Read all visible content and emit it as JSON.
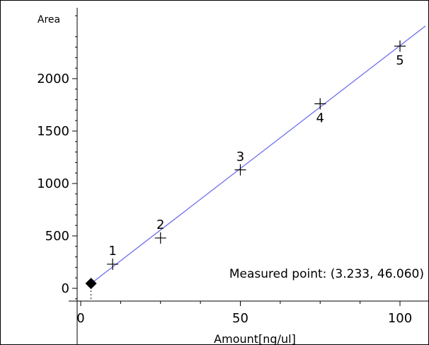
{
  "chart_data": {
    "type": "scatter",
    "ylabel": "Area",
    "xlabel": "Amount[ng/ul]",
    "xlim": [
      -3.5,
      109
    ],
    "ylim": [
      -130,
      2650
    ],
    "xticks": [
      0,
      50,
      100
    ],
    "yticks": [
      0,
      500,
      1000,
      1500,
      2000
    ],
    "x_minor_step": 12.5,
    "y_minor_step": 100,
    "grid": false,
    "series": [
      {
        "points": [
          {
            "label": "1",
            "x": 10,
            "y": 230
          },
          {
            "label": "2",
            "x": 25,
            "y": 480
          },
          {
            "label": "3",
            "x": 50,
            "y": 1130
          },
          {
            "label": "4",
            "x": 75,
            "y": 1760
          },
          {
            "label": "5",
            "x": 100,
            "y": 2310
          }
        ],
        "color": "#000000",
        "marker": "cross"
      }
    ],
    "fit_line": {
      "slope": 23.45,
      "intercept": -30,
      "x_range": [
        3.233,
        108
      ],
      "color": "#6666ee"
    },
    "measured_point": {
      "x": 3.233,
      "y": 46.06,
      "marker": "diamond",
      "color": "#000000"
    },
    "annotation": "Measured point: (3.233, 46.060)"
  }
}
